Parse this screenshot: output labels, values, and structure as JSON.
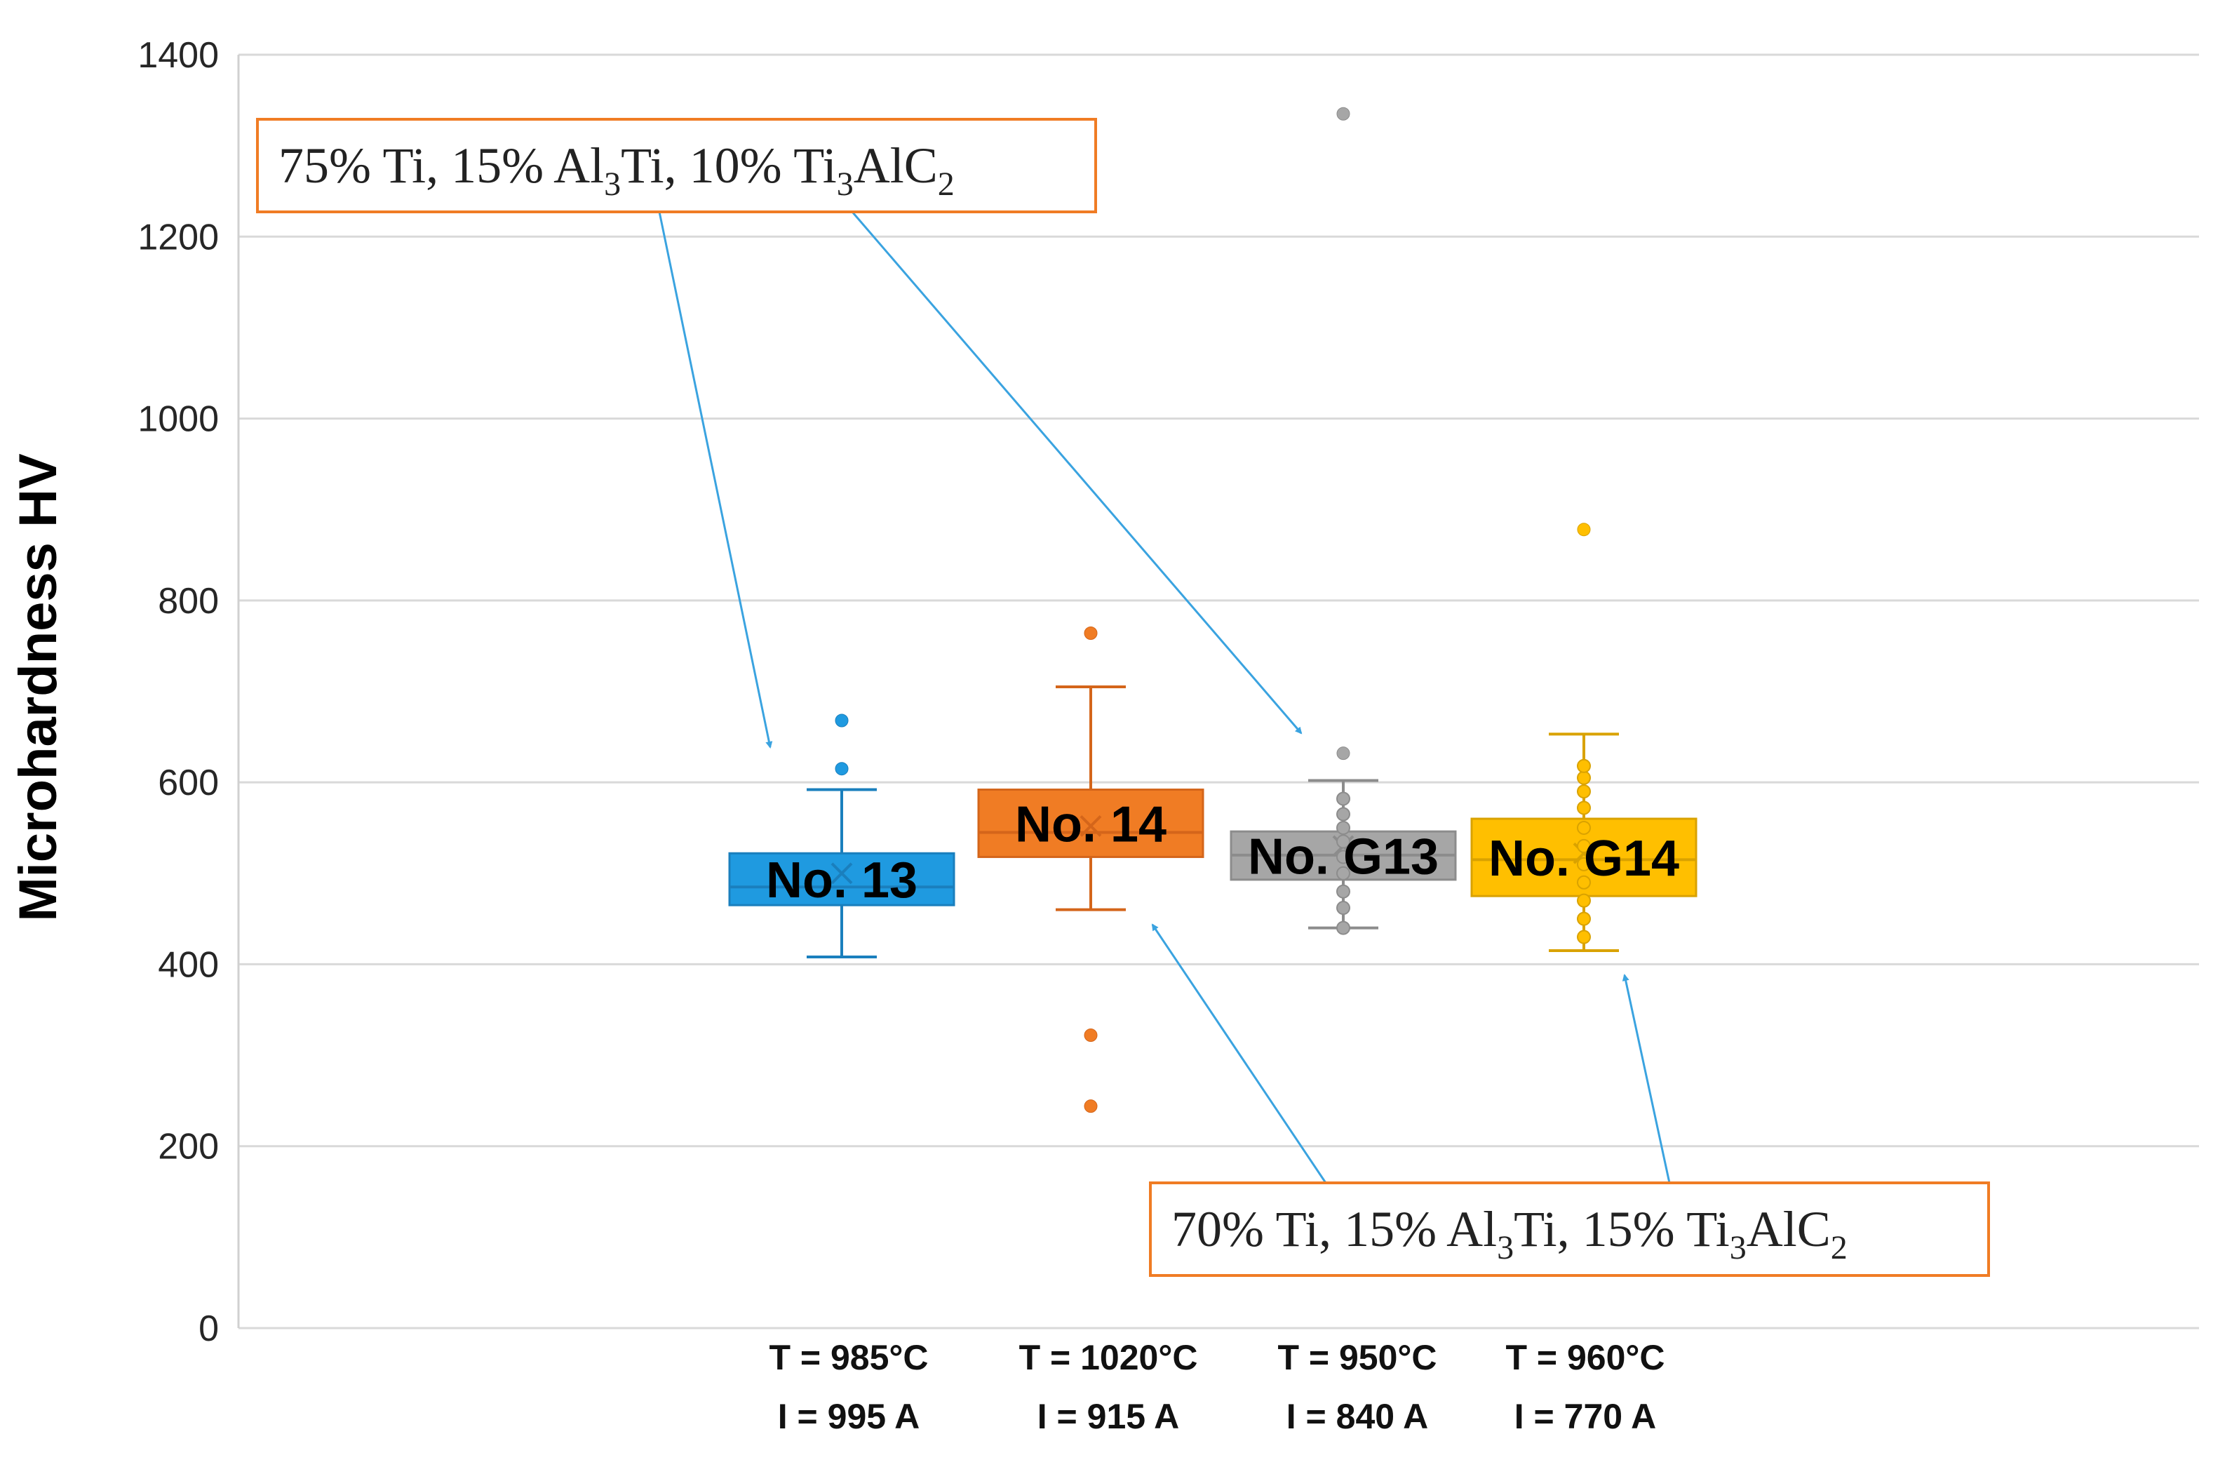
{
  "chart_data": {
    "type": "box",
    "ylabel": "Microhardness HV",
    "ylim": [
      0,
      1400
    ],
    "yticks": [
      0,
      200,
      400,
      600,
      800,
      1000,
      1200,
      1400
    ],
    "grid": true,
    "series": [
      {
        "name": "No. 13",
        "color": "#1f9ae0",
        "stroke": "#1a7fbd",
        "category_line1": "T = 985°C",
        "category_line2": "I = 995 A",
        "whisker_low": 408,
        "q1": 465,
        "median": 485,
        "mean": 500,
        "q3": 522,
        "whisker_high": 592,
        "points": [],
        "outliers": [
          615,
          668
        ]
      },
      {
        "name": "No. 14",
        "color": "#f07c24",
        "stroke": "#d4651a",
        "category_line1": "T = 1020°C",
        "category_line2": "I = 915 A",
        "whisker_low": 460,
        "q1": 518,
        "median": 545,
        "mean": 552,
        "q3": 592,
        "whisker_high": 705,
        "points": [],
        "outliers": [
          764,
          322,
          244
        ]
      },
      {
        "name": "No. G13",
        "color": "#a6a6a6",
        "stroke": "#8c8c8c",
        "category_line1": "T = 950°C",
        "category_line2": "I = 840 A",
        "whisker_low": 440,
        "q1": 493,
        "median": 520,
        "mean": 530,
        "q3": 546,
        "whisker_high": 602,
        "points": [
          440,
          462,
          480,
          500,
          518,
          535,
          550,
          565,
          582
        ],
        "outliers": [
          632,
          1335
        ]
      },
      {
        "name": "No. G14",
        "color": "#ffbf00",
        "stroke": "#d9a200",
        "category_line1": "T = 960°C",
        "category_line2": "I = 770 A",
        "whisker_low": 415,
        "q1": 475,
        "median": 515,
        "mean": 522,
        "q3": 560,
        "whisker_high": 653,
        "points": [
          430,
          450,
          470,
          490,
          510,
          530,
          550,
          572,
          590,
          605,
          618
        ],
        "outliers": [
          878
        ]
      }
    ],
    "annotations": [
      {
        "name": "annotation-top",
        "parts": [
          "75% Ti, 15% Al",
          "3",
          "Ti, 10% Ti",
          "3",
          "AlC",
          "2"
        ],
        "color": "#f07c24"
      },
      {
        "name": "annotation-bottom",
        "parts": [
          "70% Ti, 15% Al",
          "3",
          "Ti, 15% Ti",
          "3",
          "AlC",
          "2"
        ],
        "color": "#f07c24"
      }
    ],
    "arrow_color": "#3aa3e0"
  }
}
